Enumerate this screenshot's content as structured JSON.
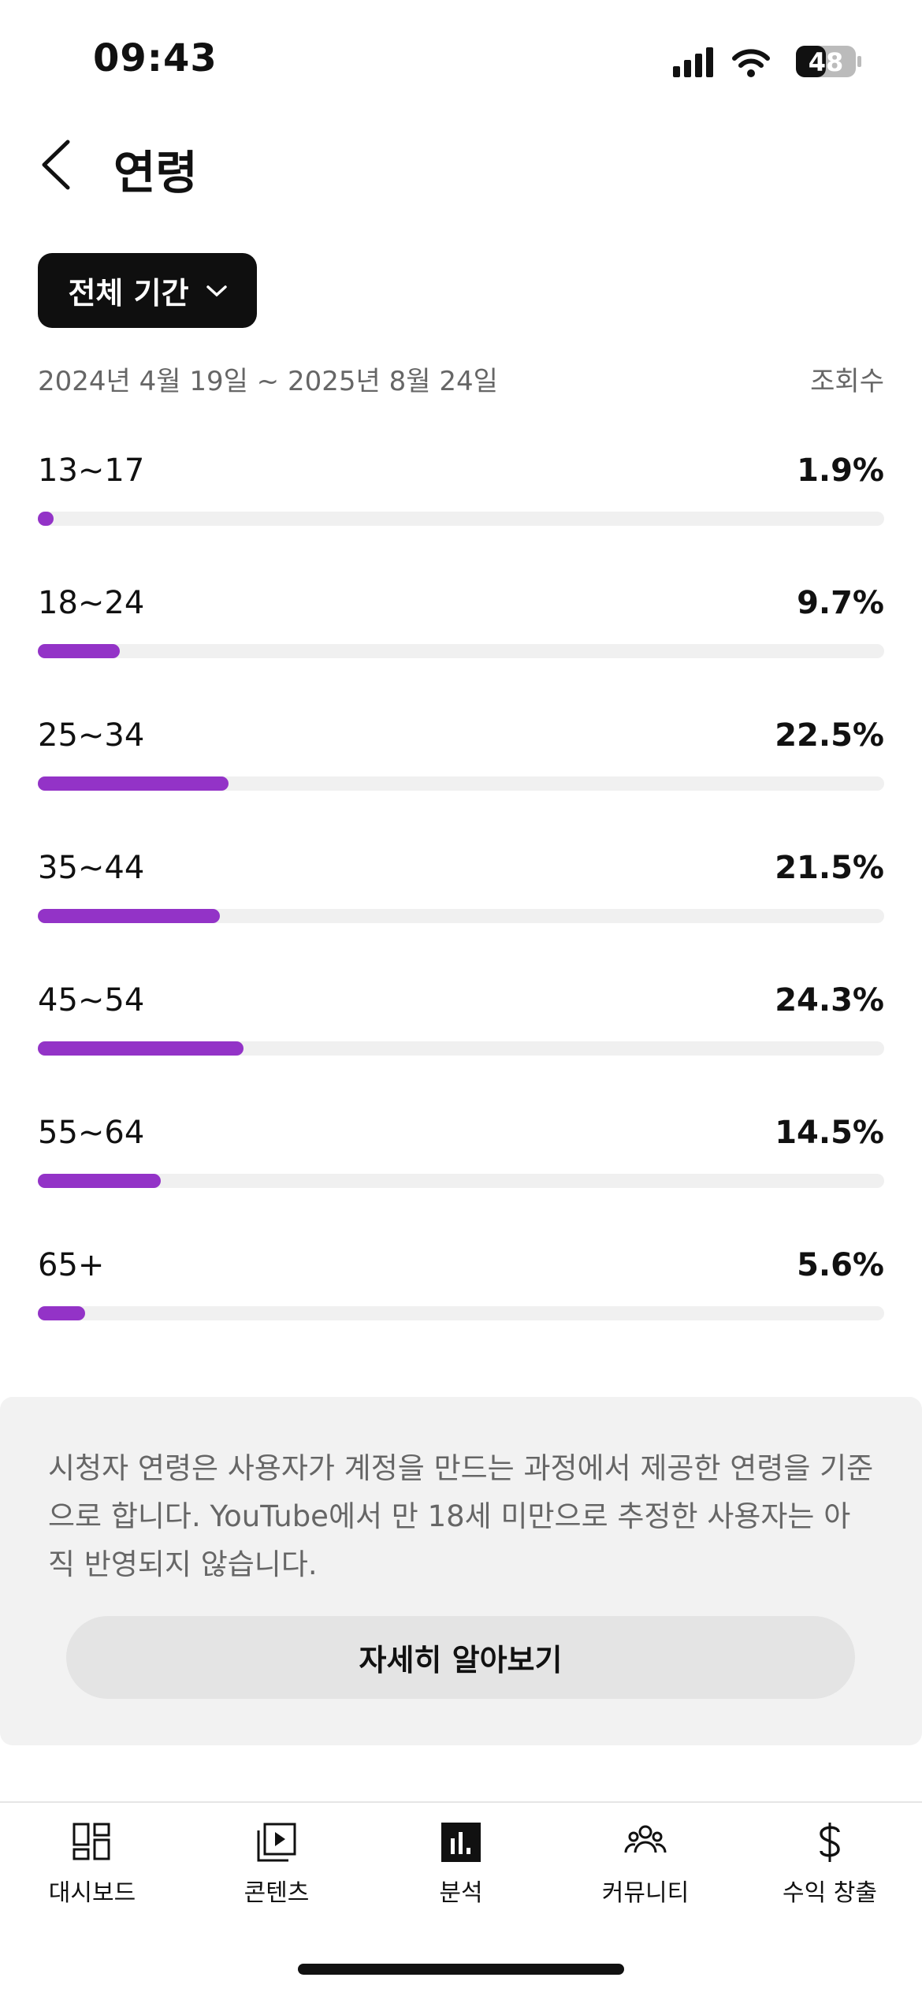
{
  "status_bar": {
    "time": "09:43",
    "battery": "48"
  },
  "header": {
    "title": "연령"
  },
  "filter": {
    "label": "전체 기간"
  },
  "date_range": "2024년 4월 19일 ~ 2025년 8월 24일",
  "metric_label": "조회수",
  "chart_data": {
    "type": "bar",
    "orientation": "horizontal",
    "categories": [
      "13~17",
      "18~24",
      "25~34",
      "35~44",
      "45~54",
      "55~64",
      "65+"
    ],
    "values": [
      1.9,
      9.7,
      22.5,
      21.5,
      24.3,
      14.5,
      5.6
    ],
    "value_labels": [
      "1.9%",
      "9.7%",
      "22.5%",
      "21.5%",
      "24.3%",
      "14.5%",
      "5.6%"
    ],
    "color": "#9333c7",
    "xlim": [
      0,
      100
    ]
  },
  "info": {
    "text": "시청자 연령은 사용자가 계정을 만드는 과정에서 제공한 연령을 기준으로 합니다. YouTube에서 만 18세 미만으로 추정한 사용자는 아직 반영되지 않습니다.",
    "button": "자세히 알아보기"
  },
  "nav": {
    "items": [
      "대시보드",
      "콘텐츠",
      "분석",
      "커뮤니티",
      "수익 창출"
    ]
  }
}
